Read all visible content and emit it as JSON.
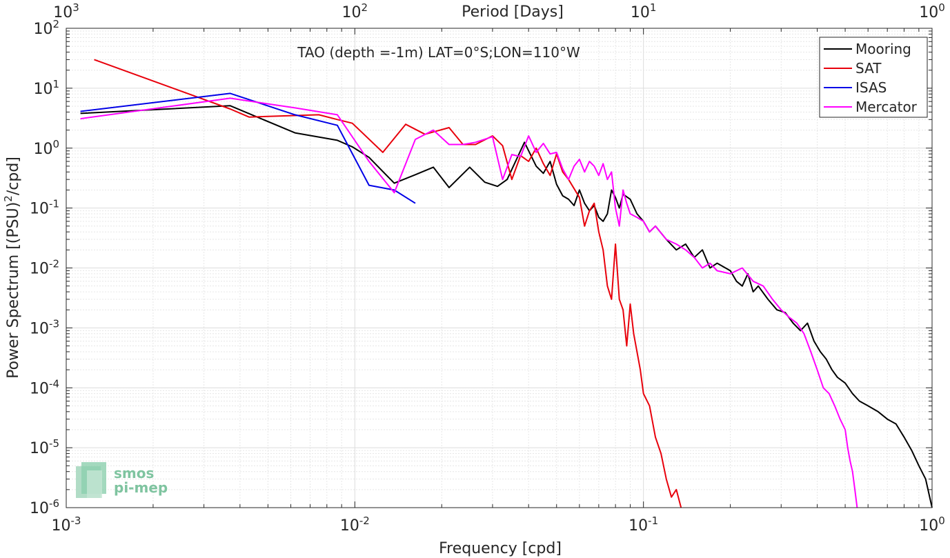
{
  "chart_data": {
    "type": "line",
    "title": "TAO (depth =-1m) LAT=0°S;LON=110°W",
    "xlabel": "Frequency [cpd]",
    "ylabel": "Power Spectrum [(PSU)²/cpd]",
    "ylabel_parts": {
      "before": "Power Spectrum [(PSU)",
      "sup": "2",
      "after": "/cpd]"
    },
    "top_xlabel": "Period [Days]",
    "x_scale": "log",
    "y_scale": "log",
    "xlim": [
      0.001,
      1
    ],
    "ylim": [
      1e-06,
      100
    ],
    "x_ticks": [
      {
        "value": 0.001,
        "base": "10",
        "exp": "-3"
      },
      {
        "value": 0.01,
        "base": "10",
        "exp": "-2"
      },
      {
        "value": 0.1,
        "base": "10",
        "exp": "-1"
      },
      {
        "value": 1,
        "base": "10",
        "exp": "0"
      }
    ],
    "top_ticks": [
      {
        "value": 0.001,
        "base": "10",
        "exp": "3"
      },
      {
        "value": 0.01,
        "base": "10",
        "exp": "2"
      },
      {
        "value": 0.1,
        "base": "10",
        "exp": "1"
      },
      {
        "value": 1,
        "base": "10",
        "exp": "0"
      }
    ],
    "y_ticks": [
      {
        "value": 100,
        "base": "10",
        "exp": "2"
      },
      {
        "value": 10,
        "base": "10",
        "exp": "1"
      },
      {
        "value": 1,
        "base": "10",
        "exp": "0"
      },
      {
        "value": 0.1,
        "base": "10",
        "exp": "-1"
      },
      {
        "value": 0.01,
        "base": "10",
        "exp": "-2"
      },
      {
        "value": 0.001,
        "base": "10",
        "exp": "-3"
      },
      {
        "value": 0.0001,
        "base": "10",
        "exp": "-4"
      },
      {
        "value": 1e-05,
        "base": "10",
        "exp": "-5"
      },
      {
        "value": 1e-06,
        "base": "10",
        "exp": "-6"
      }
    ],
    "grid": true,
    "legend_position": "top-right",
    "series": [
      {
        "name": "Mooring",
        "color": "#000000",
        "points": [
          [
            0.00112,
            3.8
          ],
          [
            0.0037,
            5.1
          ],
          [
            0.0062,
            1.8
          ],
          [
            0.0087,
            1.35
          ],
          [
            0.0098,
            1.05
          ],
          [
            0.0112,
            0.7
          ],
          [
            0.0137,
            0.26
          ],
          [
            0.0162,
            0.36
          ],
          [
            0.0187,
            0.48
          ],
          [
            0.0212,
            0.22
          ],
          [
            0.025,
            0.48
          ],
          [
            0.0282,
            0.27
          ],
          [
            0.0312,
            0.23
          ],
          [
            0.0337,
            0.3
          ],
          [
            0.0387,
            1.25
          ],
          [
            0.0425,
            0.5
          ],
          [
            0.045,
            0.38
          ],
          [
            0.0475,
            0.6
          ],
          [
            0.05,
            0.25
          ],
          [
            0.0525,
            0.16
          ],
          [
            0.055,
            0.14
          ],
          [
            0.0575,
            0.11
          ],
          [
            0.06,
            0.2
          ],
          [
            0.0625,
            0.12
          ],
          [
            0.065,
            0.09
          ],
          [
            0.0675,
            0.11
          ],
          [
            0.07,
            0.07
          ],
          [
            0.0725,
            0.06
          ],
          [
            0.075,
            0.08
          ],
          [
            0.0775,
            0.2
          ],
          [
            0.08,
            0.15
          ],
          [
            0.0825,
            0.1
          ],
          [
            0.085,
            0.17
          ],
          [
            0.09,
            0.14
          ],
          [
            0.095,
            0.08
          ],
          [
            0.1,
            0.06
          ],
          [
            0.105,
            0.04
          ],
          [
            0.11,
            0.05
          ],
          [
            0.12,
            0.03
          ],
          [
            0.13,
            0.02
          ],
          [
            0.14,
            0.025
          ],
          [
            0.15,
            0.015
          ],
          [
            0.16,
            0.02
          ],
          [
            0.17,
            0.01
          ],
          [
            0.18,
            0.012
          ],
          [
            0.2,
            0.009
          ],
          [
            0.21,
            0.006
          ],
          [
            0.22,
            0.005
          ],
          [
            0.23,
            0.008
          ],
          [
            0.24,
            0.004
          ],
          [
            0.25,
            0.005
          ],
          [
            0.27,
            0.003
          ],
          [
            0.29,
            0.002
          ],
          [
            0.31,
            0.0018
          ],
          [
            0.33,
            0.0012
          ],
          [
            0.35,
            0.0009
          ],
          [
            0.37,
            0.0012
          ],
          [
            0.39,
            0.0006
          ],
          [
            0.41,
            0.0004
          ],
          [
            0.43,
            0.0003
          ],
          [
            0.45,
            0.0002
          ],
          [
            0.47,
            0.00015
          ],
          [
            0.5,
            0.00012
          ],
          [
            0.53,
            8e-05
          ],
          [
            0.56,
            6e-05
          ],
          [
            0.6,
            5e-05
          ],
          [
            0.65,
            4e-05
          ],
          [
            0.7,
            3e-05
          ],
          [
            0.75,
            2.5e-05
          ],
          [
            0.8,
            1.5e-05
          ],
          [
            0.85,
            9e-06
          ],
          [
            0.9,
            5e-06
          ],
          [
            0.95,
            3e-06
          ],
          [
            1.0,
            1e-06
          ]
        ]
      },
      {
        "name": "SAT",
        "color": "#e8000b",
        "points": [
          [
            0.00125,
            30
          ],
          [
            0.0037,
            4.5
          ],
          [
            0.0043,
            3.3
          ],
          [
            0.0075,
            3.6
          ],
          [
            0.0087,
            3.0
          ],
          [
            0.0098,
            2.6
          ],
          [
            0.0125,
            0.85
          ],
          [
            0.015,
            2.5
          ],
          [
            0.0175,
            1.7
          ],
          [
            0.0212,
            2.2
          ],
          [
            0.0237,
            1.15
          ],
          [
            0.0262,
            1.15
          ],
          [
            0.03,
            1.6
          ],
          [
            0.0325,
            1.1
          ],
          [
            0.035,
            0.3
          ],
          [
            0.0375,
            0.75
          ],
          [
            0.04,
            0.6
          ],
          [
            0.0425,
            1.0
          ],
          [
            0.045,
            0.55
          ],
          [
            0.0475,
            0.35
          ],
          [
            0.05,
            0.8
          ],
          [
            0.0525,
            0.4
          ],
          [
            0.055,
            0.3
          ],
          [
            0.06,
            0.15
          ],
          [
            0.0625,
            0.05
          ],
          [
            0.065,
            0.09
          ],
          [
            0.0675,
            0.12
          ],
          [
            0.07,
            0.04
          ],
          [
            0.0725,
            0.02
          ],
          [
            0.075,
            0.005
          ],
          [
            0.0775,
            0.003
          ],
          [
            0.08,
            0.025
          ],
          [
            0.0825,
            0.003
          ],
          [
            0.085,
            0.002
          ],
          [
            0.0875,
            0.0005
          ],
          [
            0.09,
            0.0025
          ],
          [
            0.0925,
            0.0008
          ],
          [
            0.095,
            0.0004
          ],
          [
            0.0975,
            0.0002
          ],
          [
            0.1,
            8e-05
          ],
          [
            0.105,
            5e-05
          ],
          [
            0.11,
            1.5e-05
          ],
          [
            0.115,
            8e-06
          ],
          [
            0.12,
            3e-06
          ],
          [
            0.125,
            1.5e-06
          ],
          [
            0.13,
            2e-06
          ],
          [
            0.135,
            1e-06
          ]
        ]
      },
      {
        "name": "ISAS",
        "color": "#0000e6",
        "points": [
          [
            0.00112,
            4.1
          ],
          [
            0.0037,
            8.2
          ],
          [
            0.0062,
            3.6
          ],
          [
            0.0087,
            2.4
          ],
          [
            0.0112,
            0.24
          ],
          [
            0.0137,
            0.2
          ],
          [
            0.0162,
            0.12
          ]
        ]
      },
      {
        "name": "Mercator",
        "color": "#ff00ff",
        "points": [
          [
            0.00112,
            3.1
          ],
          [
            0.0037,
            6.8
          ],
          [
            0.0062,
            4.7
          ],
          [
            0.0087,
            3.6
          ],
          [
            0.0112,
            0.6
          ],
          [
            0.0137,
            0.18
          ],
          [
            0.0162,
            1.4
          ],
          [
            0.0187,
            2.0
          ],
          [
            0.0212,
            1.15
          ],
          [
            0.0237,
            1.15
          ],
          [
            0.0262,
            1.25
          ],
          [
            0.03,
            1.55
          ],
          [
            0.0325,
            0.3
          ],
          [
            0.035,
            0.78
          ],
          [
            0.0375,
            0.72
          ],
          [
            0.04,
            1.6
          ],
          [
            0.0425,
            0.85
          ],
          [
            0.045,
            1.2
          ],
          [
            0.0475,
            0.8
          ],
          [
            0.05,
            0.85
          ],
          [
            0.0525,
            0.45
          ],
          [
            0.055,
            0.3
          ],
          [
            0.0575,
            0.5
          ],
          [
            0.06,
            0.65
          ],
          [
            0.0625,
            0.4
          ],
          [
            0.065,
            0.6
          ],
          [
            0.0675,
            0.5
          ],
          [
            0.07,
            0.35
          ],
          [
            0.0725,
            0.55
          ],
          [
            0.075,
            0.3
          ],
          [
            0.0775,
            0.4
          ],
          [
            0.08,
            0.1
          ],
          [
            0.0825,
            0.05
          ],
          [
            0.085,
            0.2
          ],
          [
            0.0875,
            0.12
          ],
          [
            0.09,
            0.08
          ],
          [
            0.095,
            0.07
          ],
          [
            0.1,
            0.06
          ],
          [
            0.105,
            0.04
          ],
          [
            0.11,
            0.05
          ],
          [
            0.12,
            0.03
          ],
          [
            0.13,
            0.025
          ],
          [
            0.14,
            0.02
          ],
          [
            0.15,
            0.015
          ],
          [
            0.16,
            0.01
          ],
          [
            0.17,
            0.012
          ],
          [
            0.18,
            0.009
          ],
          [
            0.2,
            0.008
          ],
          [
            0.22,
            0.01
          ],
          [
            0.24,
            0.006
          ],
          [
            0.26,
            0.005
          ],
          [
            0.28,
            0.003
          ],
          [
            0.3,
            0.002
          ],
          [
            0.32,
            0.0015
          ],
          [
            0.34,
            0.0012
          ],
          [
            0.36,
            0.0008
          ],
          [
            0.38,
            0.0004
          ],
          [
            0.4,
            0.0002
          ],
          [
            0.42,
            0.0001
          ],
          [
            0.44,
            8e-05
          ],
          [
            0.46,
            5e-05
          ],
          [
            0.48,
            3e-05
          ],
          [
            0.5,
            2e-05
          ],
          [
            0.51,
            1e-05
          ],
          [
            0.52,
            6e-06
          ],
          [
            0.53,
            4e-06
          ],
          [
            0.54,
            2e-06
          ],
          [
            0.55,
            1e-06
          ]
        ]
      }
    ]
  },
  "watermark": {
    "line1": "smos",
    "line2": "pi-mep"
  }
}
